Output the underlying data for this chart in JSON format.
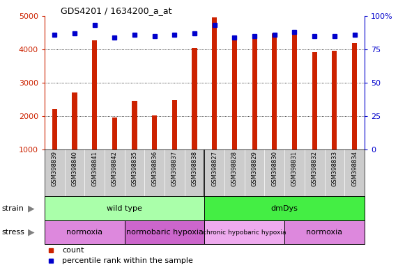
{
  "title": "GDS4201 / 1634200_a_at",
  "samples": [
    "GSM398839",
    "GSM398840",
    "GSM398841",
    "GSM398842",
    "GSM398835",
    "GSM398836",
    "GSM398837",
    "GSM398838",
    "GSM398827",
    "GSM398828",
    "GSM398829",
    "GSM398830",
    "GSM398831",
    "GSM398832",
    "GSM398833",
    "GSM398834"
  ],
  "counts": [
    2200,
    2700,
    4280,
    1950,
    2450,
    2020,
    2470,
    4050,
    4950,
    4280,
    4380,
    4480,
    4500,
    3920,
    3960,
    4180
  ],
  "percentiles": [
    86,
    87,
    93,
    84,
    86,
    85,
    86,
    87,
    93,
    84,
    85,
    86,
    88,
    85,
    85,
    86
  ],
  "ylim_left": [
    1000,
    5000
  ],
  "ylim_right": [
    0,
    100
  ],
  "yticks_left": [
    1000,
    2000,
    3000,
    4000,
    5000
  ],
  "yticks_right": [
    0,
    25,
    50,
    75,
    100
  ],
  "ytick_right_labels": [
    "0",
    "25",
    "50",
    "75",
    "100%"
  ],
  "bar_color": "#cc2200",
  "dot_color": "#0000cc",
  "bar_width": 0.25,
  "strain_groups": [
    {
      "label": "wild type",
      "start": 0,
      "end": 8,
      "color": "#aaffaa"
    },
    {
      "label": "dmDys",
      "start": 8,
      "end": 16,
      "color": "#44ee44"
    }
  ],
  "stress_groups": [
    {
      "label": "normoxia",
      "start": 0,
      "end": 4,
      "color": "#dd88dd"
    },
    {
      "label": "normobaric hypoxia",
      "start": 4,
      "end": 8,
      "color": "#cc66cc"
    },
    {
      "label": "chronic hypobaric hypoxia",
      "start": 8,
      "end": 12,
      "color": "#eeaaee"
    },
    {
      "label": "normoxia",
      "start": 12,
      "end": 16,
      "color": "#dd88dd"
    }
  ],
  "legend_count_label": "count",
  "legend_percentile_label": "percentile rank within the sample",
  "label_strain": "strain",
  "label_stress": "stress",
  "sample_bg_color": "#cccccc",
  "plot_bg_color": "#ffffff",
  "grid_yticks": [
    2000,
    3000,
    4000
  ],
  "separator_idx": 8
}
